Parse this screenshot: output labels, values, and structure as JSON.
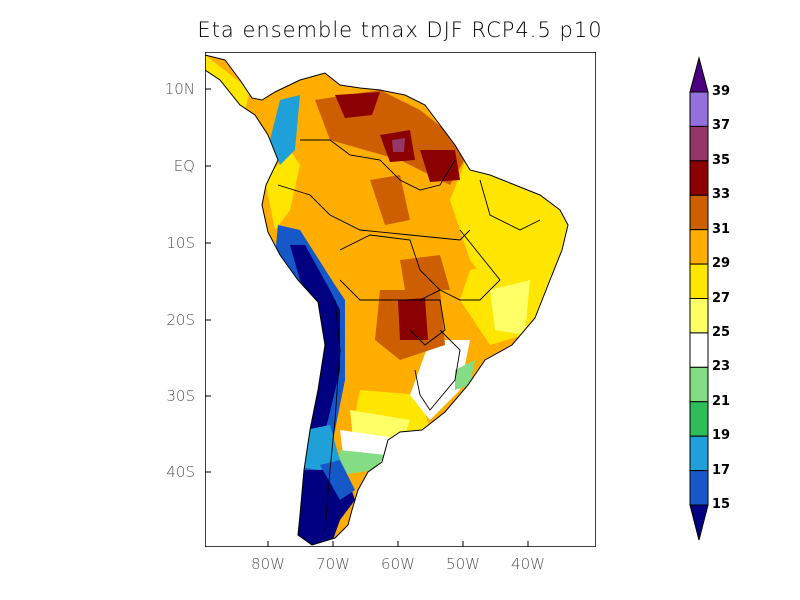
{
  "title": "Eta ensemble tmax DJF RCP4.5 p10",
  "axes": {
    "lat_labels": [
      "10N",
      "EQ",
      "10S",
      "20S",
      "30S",
      "40S"
    ],
    "lon_labels": [
      "80W",
      "70W",
      "60W",
      "50W",
      "40W"
    ]
  },
  "colorbar": {
    "labels": [
      "39",
      "37",
      "35",
      "33",
      "31",
      "29",
      "27",
      "25",
      "23",
      "21",
      "19",
      "17",
      "15"
    ],
    "over_color": "#4a0080",
    "under_color": "#000080",
    "colors": [
      "#9370db",
      "#943766",
      "#8b0000",
      "#cd5f00",
      "#ffae00",
      "#ffe600",
      "#ffff66",
      "#ffffff",
      "#84dd84",
      "#2dbe5a",
      "#20a0d8",
      "#1658c8"
    ]
  }
}
